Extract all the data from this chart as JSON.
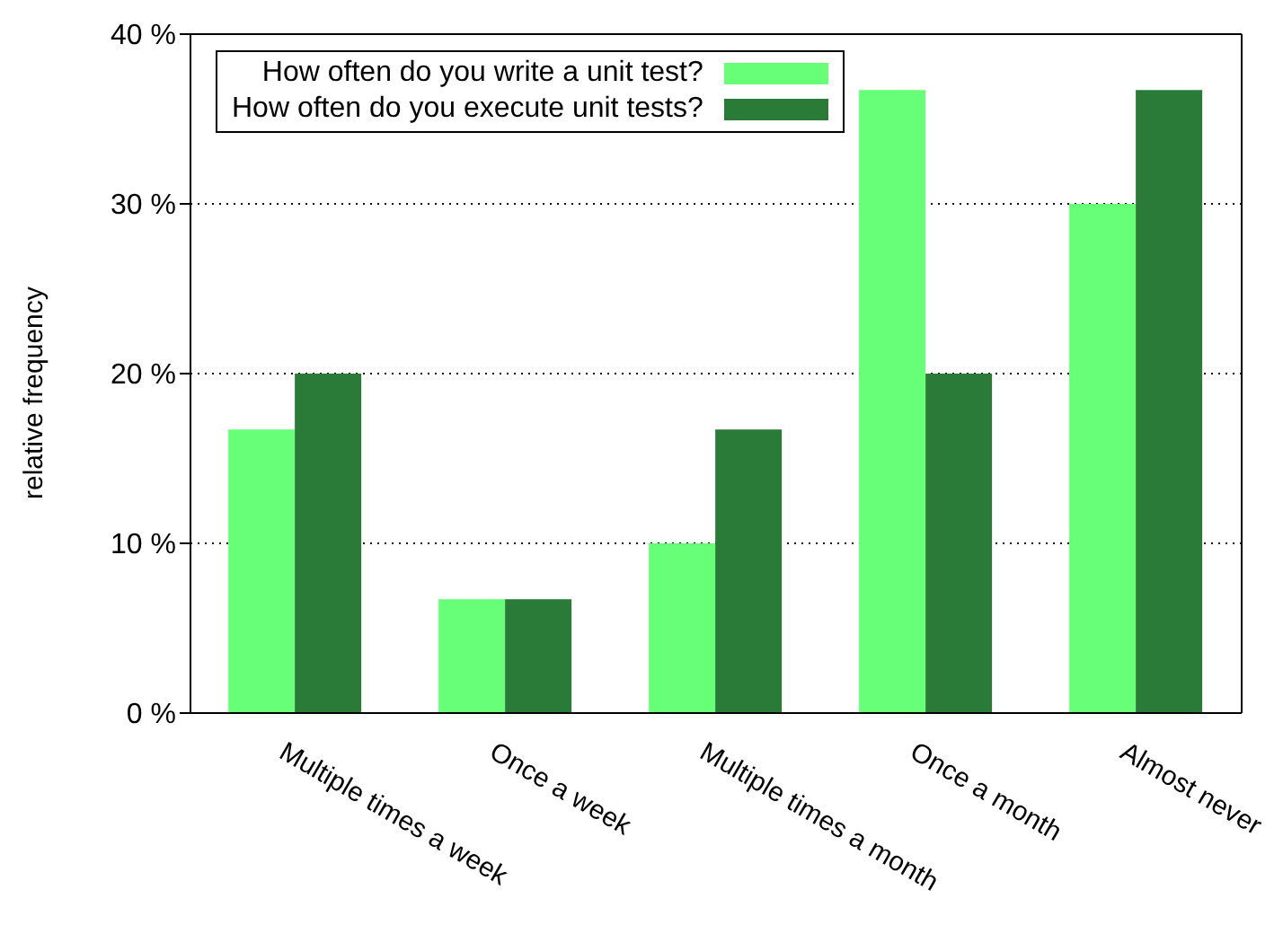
{
  "chart_data": {
    "type": "bar",
    "ylabel": "relative frequency",
    "categories": [
      "Multiple times a week",
      "Once a week",
      "Multiple times a month",
      "Once a month",
      "Almost never"
    ],
    "series": [
      {
        "name": "How often do you write a unit test?",
        "color": "#66ff77",
        "values": [
          16.7,
          6.7,
          10,
          36.7,
          30
        ]
      },
      {
        "name": "How often do you execute unit tests?",
        "color": "#2a7b38",
        "values": [
          20,
          6.7,
          16.7,
          20,
          36.7
        ]
      }
    ],
    "ylim": [
      0,
      40
    ],
    "yticks": [
      {
        "value": 0,
        "label": "0 %"
      },
      {
        "value": 10,
        "label": "10 %"
      },
      {
        "value": 20,
        "label": "20 %"
      },
      {
        "value": 30,
        "label": "30 %"
      },
      {
        "value": 40,
        "label": "40 %"
      }
    ],
    "grid": "y",
    "legend": "top left"
  }
}
